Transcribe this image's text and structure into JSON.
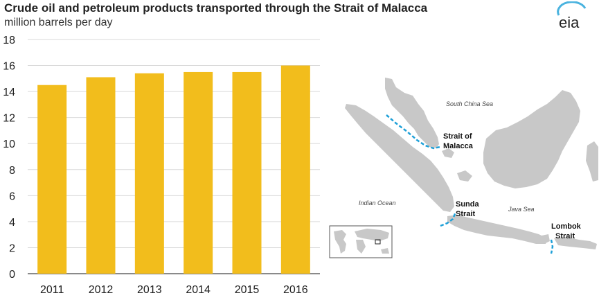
{
  "header": {
    "title": "Crude oil and petroleum products transported through the Strait of Malacca",
    "subtitle": "million barrels per day",
    "logo_text": "eia"
  },
  "colors": {
    "bar": "#f2bd1c",
    "gridline": "#d9d9d9",
    "land": "#c8c8c8",
    "strait_line": "#1ea0d8",
    "logo_arc": "#4ab3df"
  },
  "chart_data": {
    "type": "bar",
    "title": "Crude oil and petroleum products transported through the Strait of Malacca",
    "ylabel": "million barrels per day",
    "categories": [
      "2011",
      "2012",
      "2013",
      "2014",
      "2015",
      "2016"
    ],
    "values": [
      14.5,
      15.1,
      15.4,
      15.5,
      15.5,
      16.0
    ],
    "ylim": [
      0,
      18
    ],
    "yticks": [
      0,
      2,
      4,
      6,
      8,
      10,
      12,
      14,
      16,
      18
    ],
    "grid": true,
    "legend": "none"
  },
  "map": {
    "labels": {
      "malacca_1": "Strait of",
      "malacca_2": "Malacca",
      "sunda_1": "Sunda",
      "sunda_2": "Strait",
      "lombok_1": "Lombok",
      "lombok_2": "Strait",
      "south_china_sea": "South China Sea",
      "indian_ocean": "Indian Ocean",
      "java_sea": "Java Sea"
    }
  }
}
